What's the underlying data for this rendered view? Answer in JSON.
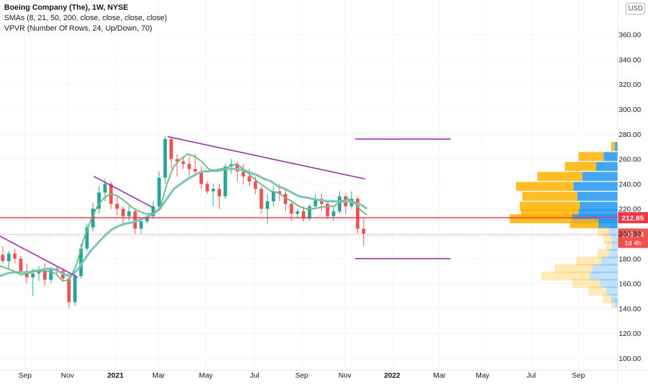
{
  "legend": {
    "title": "Boeing Company (The), 1W, NYSE",
    "sma": "SMAs (8, 21, 50, 200, close, close, close, close)",
    "vpvr": "VPVR (Number Of Rows, 24, Up/Down, 70)"
  },
  "currency": "USD",
  "price_labels": {
    "level": "212.85",
    "last": "199.14",
    "countdown": "1d 4h"
  },
  "colors": {
    "up": "#26a69a",
    "down": "#ef5350",
    "sma_fast": "#6fba86",
    "sma_slow": "#7ec4bf",
    "trendline": "#9c27b0",
    "level_line": "#f23645",
    "vp_up": "#2196f3",
    "vp_down": "#ffb300"
  },
  "chart_data": {
    "type": "candlestick",
    "y_range": [
      93,
      383
    ],
    "y_ticks": [
      "100.00",
      "120.00",
      "140.00",
      "160.00",
      "180.00",
      "200.00",
      "220.00",
      "240.00",
      "260.00",
      "280.00",
      "300.00",
      "320.00",
      "340.00",
      "360.00"
    ],
    "x_tick_labels": [
      "Sep",
      "Nov",
      "2021",
      "Mar",
      "May",
      "Jul",
      "Sep",
      "Nov",
      "2022",
      "Mar",
      "May",
      "Jul",
      "Sep"
    ],
    "candles": [
      [
        183,
        190,
        176,
        178
      ],
      [
        178,
        186,
        172,
        184
      ],
      [
        184,
        188,
        176,
        180
      ],
      [
        180,
        182,
        168,
        170
      ],
      [
        170,
        176,
        160,
        165
      ],
      [
        165,
        172,
        150,
        168
      ],
      [
        168,
        174,
        162,
        170
      ],
      [
        170,
        176,
        158,
        163
      ],
      [
        163,
        173,
        160,
        172
      ],
      [
        172,
        174,
        166,
        170
      ],
      [
        170,
        172,
        162,
        164
      ],
      [
        164,
        168,
        140,
        145
      ],
      [
        145,
        168,
        142,
        166
      ],
      [
        166,
        192,
        164,
        188
      ],
      [
        188,
        208,
        186,
        205
      ],
      [
        205,
        225,
        202,
        220
      ],
      [
        220,
        238,
        216,
        233
      ],
      [
        233,
        244,
        226,
        240
      ],
      [
        240,
        242,
        220,
        224
      ],
      [
        224,
        230,
        215,
        220
      ],
      [
        220,
        222,
        208,
        214
      ],
      [
        214,
        222,
        210,
        218
      ],
      [
        218,
        220,
        200,
        204
      ],
      [
        204,
        212,
        200,
        210
      ],
      [
        210,
        216,
        208,
        214
      ],
      [
        214,
        226,
        212,
        222
      ],
      [
        222,
        250,
        220,
        245
      ],
      [
        245,
        278,
        240,
        276
      ],
      [
        276,
        278,
        252,
        260
      ],
      [
        260,
        264,
        246,
        258
      ],
      [
        258,
        262,
        252,
        256
      ],
      [
        256,
        262,
        246,
        252
      ],
      [
        252,
        264,
        248,
        250
      ],
      [
        250,
        254,
        236,
        240
      ],
      [
        240,
        242,
        232,
        234
      ],
      [
        234,
        240,
        222,
        236
      ],
      [
        236,
        240,
        220,
        230
      ],
      [
        230,
        256,
        228,
        254
      ],
      [
        254,
        260,
        248,
        256
      ],
      [
        256,
        258,
        242,
        250
      ],
      [
        250,
        256,
        240,
        246
      ],
      [
        246,
        252,
        238,
        242
      ],
      [
        242,
        246,
        232,
        236
      ],
      [
        236,
        238,
        216,
        220
      ],
      [
        220,
        232,
        208,
        226
      ],
      [
        226,
        238,
        222,
        234
      ],
      [
        234,
        240,
        226,
        232
      ],
      [
        232,
        236,
        218,
        224
      ],
      [
        224,
        226,
        210,
        216
      ],
      [
        216,
        220,
        212,
        218
      ],
      [
        218,
        222,
        210,
        212
      ],
      [
        212,
        224,
        210,
        222
      ],
      [
        222,
        232,
        220,
        228
      ],
      [
        228,
        232,
        218,
        224
      ],
      [
        224,
        226,
        212,
        214
      ],
      [
        214,
        222,
        210,
        218
      ],
      [
        218,
        234,
        216,
        230
      ],
      [
        230,
        232,
        216,
        222
      ],
      [
        222,
        234,
        220,
        228
      ],
      [
        228,
        230,
        200,
        204
      ],
      [
        204,
        212,
        190,
        200
      ]
    ],
    "sma_8": [
      [
        0,
        174
      ],
      [
        10,
        172
      ],
      [
        20,
        170
      ],
      [
        30,
        167
      ],
      [
        40,
        168
      ],
      [
        50,
        170
      ],
      [
        60,
        170
      ],
      [
        70,
        170
      ],
      [
        80,
        168
      ],
      [
        90,
        162
      ],
      [
        100,
        163
      ],
      [
        110,
        175
      ],
      [
        120,
        195
      ],
      [
        130,
        210
      ],
      [
        140,
        222
      ],
      [
        150,
        229
      ],
      [
        160,
        232
      ],
      [
        170,
        230
      ],
      [
        180,
        226
      ],
      [
        190,
        221
      ],
      [
        200,
        218
      ],
      [
        210,
        216
      ],
      [
        220,
        216
      ],
      [
        230,
        220
      ],
      [
        240,
        240
      ],
      [
        250,
        254
      ],
      [
        260,
        260
      ],
      [
        270,
        264
      ],
      [
        280,
        262
      ],
      [
        290,
        258
      ],
      [
        300,
        252
      ],
      [
        310,
        250
      ],
      [
        320,
        251
      ],
      [
        330,
        254
      ],
      [
        340,
        256
      ],
      [
        350,
        252
      ],
      [
        360,
        247
      ],
      [
        370,
        242
      ],
      [
        380,
        238
      ],
      [
        390,
        234
      ],
      [
        400,
        233
      ],
      [
        410,
        229
      ],
      [
        420,
        226
      ],
      [
        430,
        222
      ],
      [
        440,
        220
      ],
      [
        450,
        220
      ],
      [
        460,
        221
      ],
      [
        470,
        222
      ],
      [
        480,
        222
      ],
      [
        490,
        226
      ],
      [
        500,
        228
      ],
      [
        510,
        225
      ],
      [
        520,
        218
      ],
      [
        528,
        215
      ]
    ],
    "sma_21": [
      [
        0,
        166
      ],
      [
        10,
        168
      ],
      [
        20,
        169
      ],
      [
        30,
        169
      ],
      [
        40,
        169
      ],
      [
        50,
        170
      ],
      [
        60,
        171
      ],
      [
        70,
        172
      ],
      [
        80,
        171
      ],
      [
        90,
        168
      ],
      [
        100,
        166
      ],
      [
        110,
        170
      ],
      [
        120,
        178
      ],
      [
        130,
        186
      ],
      [
        140,
        192
      ],
      [
        150,
        198
      ],
      [
        160,
        203
      ],
      [
        170,
        206
      ],
      [
        180,
        208
      ],
      [
        190,
        209
      ],
      [
        200,
        211
      ],
      [
        210,
        213
      ],
      [
        220,
        216
      ],
      [
        230,
        220
      ],
      [
        240,
        228
      ],
      [
        250,
        236
      ],
      [
        260,
        240
      ],
      [
        270,
        244
      ],
      [
        280,
        247
      ],
      [
        290,
        250
      ],
      [
        300,
        250
      ],
      [
        310,
        251
      ],
      [
        320,
        252
      ],
      [
        330,
        252
      ],
      [
        340,
        252
      ],
      [
        350,
        251
      ],
      [
        360,
        249
      ],
      [
        370,
        247
      ],
      [
        380,
        244
      ],
      [
        390,
        242
      ],
      [
        400,
        238
      ],
      [
        410,
        236
      ],
      [
        420,
        233
      ],
      [
        430,
        230
      ],
      [
        440,
        229
      ],
      [
        450,
        228
      ],
      [
        460,
        227
      ],
      [
        470,
        226
      ],
      [
        480,
        226
      ],
      [
        490,
        226
      ],
      [
        500,
        226
      ],
      [
        510,
        225
      ],
      [
        520,
        223
      ],
      [
        528,
        220
      ]
    ],
    "trendlines": [
      {
        "from": [
          0,
          198
        ],
        "to": [
          112,
          165
        ]
      },
      {
        "from": [
          135,
          246
        ],
        "to": [
          220,
          221
        ]
      },
      {
        "from": [
          241,
          278
        ],
        "to": [
          525,
          244
        ]
      },
      {
        "from": [
          511,
          276
        ],
        "to": [
          648,
          276
        ]
      },
      {
        "from": [
          511,
          180
        ],
        "to": [
          648,
          180
        ]
      }
    ],
    "level_line": 212.85,
    "last_price": 199.14,
    "volume_profile": [
      {
        "price": 270,
        "up": 4,
        "down": 6
      },
      {
        "price": 262,
        "up": 22,
        "down": 40
      },
      {
        "price": 254,
        "up": 34,
        "down": 50
      },
      {
        "price": 246,
        "up": 56,
        "down": 72
      },
      {
        "price": 238,
        "up": 70,
        "down": 92
      },
      {
        "price": 230,
        "up": 64,
        "down": 88
      },
      {
        "price": 222,
        "up": 60,
        "down": 96
      },
      {
        "price": 216,
        "up": 62,
        "down": 92
      },
      {
        "price": 212,
        "up": 72,
        "down": 100
      },
      {
        "price": 208,
        "up": 30,
        "down": 46
      },
      {
        "price": 202,
        "up": 14,
        "down": 18
      },
      {
        "price": 196,
        "up": 10,
        "down": 12
      },
      {
        "price": 190,
        "up": 8,
        "down": 10
      },
      {
        "price": 184,
        "up": 14,
        "down": 18
      },
      {
        "price": 178,
        "up": 26,
        "down": 40
      },
      {
        "price": 172,
        "up": 40,
        "down": 60
      },
      {
        "price": 166,
        "up": 44,
        "down": 78
      },
      {
        "price": 160,
        "up": 28,
        "down": 44
      },
      {
        "price": 154,
        "up": 18,
        "down": 28
      },
      {
        "price": 148,
        "up": 10,
        "down": 14
      },
      {
        "price": 144,
        "up": 4,
        "down": 6
      }
    ]
  }
}
